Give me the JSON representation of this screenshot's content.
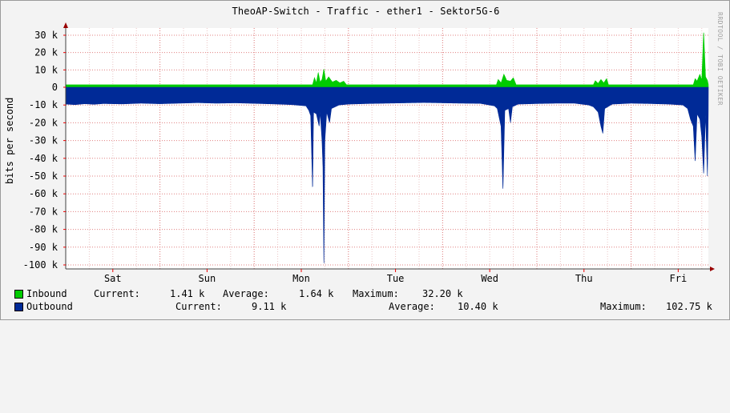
{
  "chart_data": {
    "type": "area",
    "title": "TheoAP-Switch - Traffic - ether1 - Sektor5G-6",
    "ylabel": "bits per second",
    "watermark": "RRDTOOL / TOBI OETIKER",
    "ylim": [
      -102000,
      35000
    ],
    "yticks": [
      30000,
      20000,
      10000,
      0,
      -10000,
      -20000,
      -30000,
      -40000,
      -50000,
      -60000,
      -70000,
      -80000,
      -90000,
      -100000
    ],
    "ytick_labels": [
      "30 k",
      "20 k",
      "10 k",
      "0",
      "-10 k",
      "-20 k",
      "-30 k",
      "-40 k",
      "-50 k",
      "-60 k",
      "-70 k",
      "-80 k",
      "-90 k",
      "-100 k"
    ],
    "xlim": [
      0,
      6.82
    ],
    "xticks": [
      0.5,
      1.5,
      2.5,
      3.5,
      4.5,
      5.5,
      6.5
    ],
    "xtick_labels": [
      "Sat",
      "Sun",
      "Mon",
      "Tue",
      "Wed",
      "Thu",
      "Fri"
    ],
    "grid": true,
    "series": [
      {
        "name": "Inbound",
        "color": "#00cc00",
        "base": 1400,
        "points": [
          [
            2.62,
            1400
          ],
          [
            2.64,
            5500
          ],
          [
            2.66,
            2500
          ],
          [
            2.68,
            8500
          ],
          [
            2.7,
            3000
          ],
          [
            2.72,
            4500
          ],
          [
            2.74,
            10500
          ],
          [
            2.76,
            3500
          ],
          [
            2.79,
            6000
          ],
          [
            2.83,
            3000
          ],
          [
            2.87,
            4000
          ],
          [
            2.91,
            2500
          ],
          [
            2.95,
            3500
          ],
          [
            2.98,
            1400
          ],
          [
            4.57,
            1400
          ],
          [
            4.59,
            4500
          ],
          [
            4.62,
            2500
          ],
          [
            4.65,
            7500
          ],
          [
            4.68,
            4000
          ],
          [
            4.72,
            3500
          ],
          [
            4.75,
            5500
          ],
          [
            4.78,
            1400
          ],
          [
            5.6,
            1400
          ],
          [
            5.62,
            3800
          ],
          [
            5.65,
            2200
          ],
          [
            5.68,
            4500
          ],
          [
            5.71,
            2500
          ],
          [
            5.74,
            5000
          ],
          [
            5.76,
            1400
          ],
          [
            6.66,
            1400
          ],
          [
            6.68,
            5000
          ],
          [
            6.7,
            3500
          ],
          [
            6.73,
            7500
          ],
          [
            6.75,
            4000
          ],
          [
            6.77,
            32200
          ],
          [
            6.79,
            6000
          ],
          [
            6.81,
            4000
          ]
        ]
      },
      {
        "name": "Outbound",
        "color": "#002a97",
        "base": -9100,
        "points": [
          [
            0.0,
            -9500
          ],
          [
            0.1,
            -9800
          ],
          [
            0.2,
            -9300
          ],
          [
            0.3,
            -9600
          ],
          [
            0.4,
            -9200
          ],
          [
            0.6,
            -9400
          ],
          [
            0.8,
            -9000
          ],
          [
            1.0,
            -9300
          ],
          [
            1.2,
            -9000
          ],
          [
            1.4,
            -8700
          ],
          [
            1.6,
            -9000
          ],
          [
            1.8,
            -8800
          ],
          [
            2.0,
            -9100
          ],
          [
            2.2,
            -9400
          ],
          [
            2.4,
            -9800
          ],
          [
            2.55,
            -10500
          ],
          [
            2.58,
            -13000
          ],
          [
            2.6,
            -16000
          ],
          [
            2.62,
            -58000
          ],
          [
            2.63,
            -14000
          ],
          [
            2.66,
            -15000
          ],
          [
            2.69,
            -22000
          ],
          [
            2.7,
            -14000
          ],
          [
            2.72,
            -30000
          ],
          [
            2.73,
            -45000
          ],
          [
            2.74,
            -102700
          ],
          [
            2.75,
            -30000
          ],
          [
            2.77,
            -14000
          ],
          [
            2.8,
            -20000
          ],
          [
            2.82,
            -12000
          ],
          [
            2.86,
            -11000
          ],
          [
            2.9,
            -10000
          ],
          [
            3.0,
            -9500
          ],
          [
            3.2,
            -9200
          ],
          [
            3.4,
            -9000
          ],
          [
            3.6,
            -8800
          ],
          [
            3.8,
            -8600
          ],
          [
            4.0,
            -8800
          ],
          [
            4.2,
            -9000
          ],
          [
            4.4,
            -9100
          ],
          [
            4.55,
            -10500
          ],
          [
            4.58,
            -12000
          ],
          [
            4.62,
            -22000
          ],
          [
            4.64,
            -58000
          ],
          [
            4.66,
            -13000
          ],
          [
            4.7,
            -12000
          ],
          [
            4.72,
            -20000
          ],
          [
            4.74,
            -11000
          ],
          [
            4.8,
            -9500
          ],
          [
            5.0,
            -9200
          ],
          [
            5.2,
            -9000
          ],
          [
            5.4,
            -9000
          ],
          [
            5.55,
            -10000
          ],
          [
            5.6,
            -11000
          ],
          [
            5.65,
            -14000
          ],
          [
            5.68,
            -22000
          ],
          [
            5.7,
            -26000
          ],
          [
            5.72,
            -12000
          ],
          [
            5.8,
            -9500
          ],
          [
            6.0,
            -9000
          ],
          [
            6.2,
            -9200
          ],
          [
            6.4,
            -9500
          ],
          [
            6.55,
            -10000
          ],
          [
            6.6,
            -12000
          ],
          [
            6.63,
            -18000
          ],
          [
            6.66,
            -22000
          ],
          [
            6.68,
            -42000
          ],
          [
            6.7,
            -15000
          ],
          [
            6.73,
            -18000
          ],
          [
            6.75,
            -28000
          ],
          [
            6.77,
            -49000
          ],
          [
            6.79,
            -15000
          ],
          [
            6.81,
            -50000
          ]
        ]
      }
    ]
  },
  "legend": [
    {
      "name": "Inbound",
      "color": "#00cc00",
      "current_label": "Current:",
      "current": "1.41 k",
      "average_label": "Average:",
      "average": "1.64 k",
      "maximum_label": "Maximum:",
      "maximum": "32.20 k"
    },
    {
      "name": "Outbound",
      "color": "#002a97",
      "current_label": "Current:",
      "current": "9.11 k",
      "average_label": "Average:",
      "average": "10.40 k",
      "maximum_label": "Maximum:",
      "maximum": "102.75 k"
    }
  ]
}
